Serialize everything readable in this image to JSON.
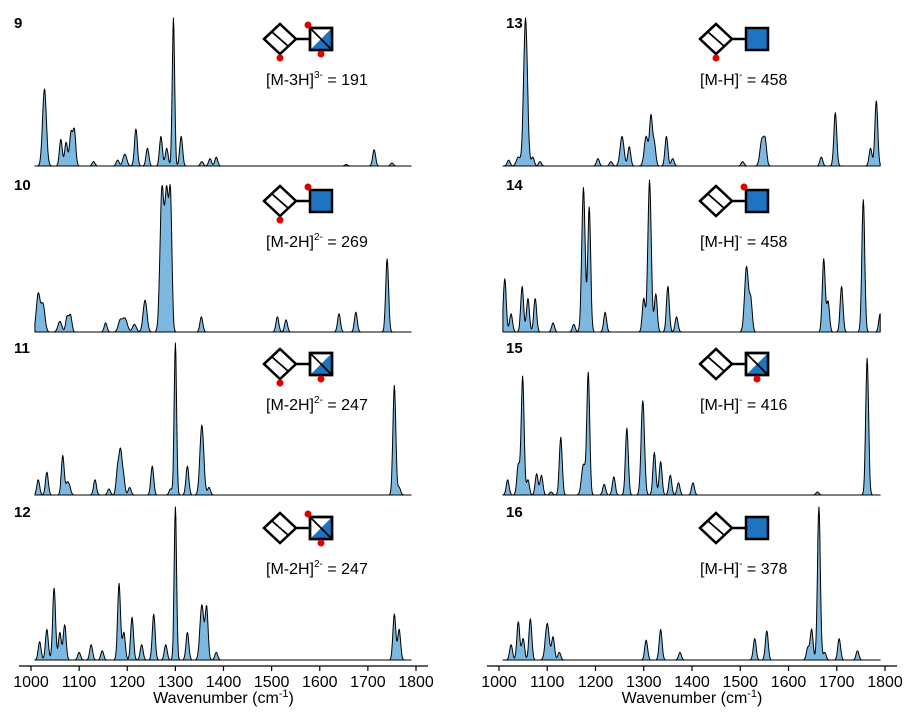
{
  "colors": {
    "fill": "#7db8e0",
    "line": "#000000",
    "hexnac": "#1e74c0",
    "sulfate": "#e00000"
  },
  "axes": {
    "left": {
      "xlabel_base": "Wavenumber (cm",
      "xlabel_sup": "-1",
      "xlabel_end": ")",
      "xlim": [
        1000,
        1800
      ],
      "ticks": [
        "1000",
        "1100",
        "1200",
        "1300",
        "1400",
        "1500",
        "1600",
        "1700",
        "1800"
      ]
    },
    "right": {
      "xlabel_base": "Wavenumber (cm",
      "xlabel_sup": "-1",
      "xlabel_end": ")",
      "xlim": [
        1000,
        1800
      ],
      "ticks": [
        "1000",
        "1100",
        "1200",
        "1300",
        "1400",
        "1500",
        "1600",
        "1700",
        "1800"
      ]
    }
  },
  "chart_data": [
    {
      "type": "area",
      "panel": "9",
      "column": "left",
      "ion_base": "[M-3H]",
      "ion_charge": "3-",
      "ion_mz": " = 191",
      "glycan": {
        "hexnac": "half",
        "sulfates": [
          "gal-bottom",
          "hexnac-top-left",
          "hexnac-bottom-right"
        ]
      },
      "xlim": [
        1000,
        1800
      ],
      "peaks": [
        [
          1028,
          0.52,
          4
        ],
        [
          1062,
          0.18,
          3
        ],
        [
          1073,
          0.16,
          3
        ],
        [
          1083,
          0.22,
          3
        ],
        [
          1090,
          0.24,
          3
        ],
        [
          1130,
          0.03,
          3
        ],
        [
          1180,
          0.04,
          3
        ],
        [
          1195,
          0.08,
          4
        ],
        [
          1218,
          0.25,
          3
        ],
        [
          1242,
          0.12,
          3
        ],
        [
          1270,
          0.2,
          3
        ],
        [
          1282,
          0.12,
          3
        ],
        [
          1296,
          1.0,
          2.5
        ],
        [
          1312,
          0.2,
          3
        ],
        [
          1355,
          0.03,
          3
        ],
        [
          1372,
          0.05,
          3
        ],
        [
          1385,
          0.06,
          3
        ],
        [
          1655,
          0.01,
          3
        ],
        [
          1713,
          0.11,
          3
        ],
        [
          1750,
          0.02,
          3
        ]
      ]
    },
    {
      "type": "area",
      "panel": "10",
      "column": "left",
      "ion_base": "[M-2H]",
      "ion_charge": "2-",
      "ion_mz": " = 269",
      "glycan": {
        "hexnac": "full",
        "sulfates": [
          "gal-bottom",
          "link-top"
        ]
      },
      "xlim": [
        1000,
        1800
      ],
      "peaks": [
        [
          1015,
          0.25,
          4
        ],
        [
          1025,
          0.18,
          4
        ],
        [
          1060,
          0.07,
          4
        ],
        [
          1075,
          0.1,
          3
        ],
        [
          1082,
          0.11,
          3
        ],
        [
          1155,
          0.06,
          3
        ],
        [
          1185,
          0.07,
          4
        ],
        [
          1195,
          0.09,
          5
        ],
        [
          1215,
          0.05,
          4
        ],
        [
          1237,
          0.21,
          4
        ],
        [
          1272,
          0.92,
          4
        ],
        [
          1282,
          0.9,
          4
        ],
        [
          1290,
          0.82,
          3
        ],
        [
          1354,
          0.1,
          3
        ],
        [
          1512,
          0.1,
          3
        ],
        [
          1530,
          0.08,
          3
        ],
        [
          1640,
          0.12,
          3
        ],
        [
          1675,
          0.13,
          3
        ],
        [
          1740,
          0.48,
          3
        ]
      ]
    },
    {
      "type": "area",
      "panel": "11",
      "column": "left",
      "ion_base": "[M-2H]",
      "ion_charge": "2-",
      "ion_mz": " = 247",
      "glycan": {
        "hexnac": "half",
        "sulfates": [
          "gal-bottom",
          "hexnac-bottom-right"
        ]
      },
      "xlim": [
        1000,
        1800
      ],
      "peaks": [
        [
          1015,
          0.1,
          3
        ],
        [
          1033,
          0.15,
          3
        ],
        [
          1066,
          0.26,
          3
        ],
        [
          1075,
          0.07,
          3
        ],
        [
          1080,
          0.05,
          3
        ],
        [
          1133,
          0.1,
          3
        ],
        [
          1162,
          0.04,
          3
        ],
        [
          1180,
          0.17,
          3
        ],
        [
          1186,
          0.27,
          3
        ],
        [
          1192,
          0.12,
          3
        ],
        [
          1205,
          0.05,
          3
        ],
        [
          1252,
          0.19,
          3
        ],
        [
          1290,
          0.04,
          3
        ],
        [
          1300,
          1.0,
          2.5
        ],
        [
          1325,
          0.19,
          3
        ],
        [
          1355,
          0.46,
          4
        ],
        [
          1370,
          0.05,
          3
        ],
        [
          1755,
          0.72,
          3
        ],
        [
          1765,
          0.05,
          3
        ]
      ]
    },
    {
      "type": "area",
      "panel": "12",
      "column": "left",
      "ion_base": "[M-2H]",
      "ion_charge": "2-",
      "ion_mz": " = 247",
      "glycan": {
        "hexnac": "half",
        "sulfates": [
          "link-top",
          "hexnac-bottom-right"
        ]
      },
      "xlim": [
        1000,
        1800
      ],
      "peaks": [
        [
          1018,
          0.12,
          3
        ],
        [
          1033,
          0.2,
          3
        ],
        [
          1048,
          0.47,
          3
        ],
        [
          1060,
          0.18,
          3
        ],
        [
          1070,
          0.23,
          3
        ],
        [
          1100,
          0.05,
          3
        ],
        [
          1125,
          0.1,
          3
        ],
        [
          1148,
          0.06,
          3
        ],
        [
          1183,
          0.5,
          3
        ],
        [
          1193,
          0.18,
          3
        ],
        [
          1210,
          0.28,
          3
        ],
        [
          1230,
          0.1,
          3
        ],
        [
          1255,
          0.3,
          3
        ],
        [
          1280,
          0.1,
          3
        ],
        [
          1300,
          1.0,
          2.5
        ],
        [
          1325,
          0.18,
          3
        ],
        [
          1355,
          0.36,
          4
        ],
        [
          1365,
          0.34,
          3
        ],
        [
          1385,
          0.05,
          3
        ],
        [
          1755,
          0.3,
          3
        ],
        [
          1765,
          0.2,
          3
        ]
      ]
    },
    {
      "type": "area",
      "panel": "13",
      "column": "right",
      "ion_base": "[M-H]",
      "ion_charge": "-",
      "ion_mz": " = 458",
      "glycan": {
        "hexnac": "full",
        "sulfates": [
          "gal-bottom"
        ]
      },
      "xlim": [
        1000,
        1800
      ],
      "peaks": [
        [
          1020,
          0.04,
          3
        ],
        [
          1040,
          0.06,
          4
        ],
        [
          1055,
          1.0,
          4
        ],
        [
          1070,
          0.06,
          3
        ],
        [
          1085,
          0.03,
          3
        ],
        [
          1205,
          0.05,
          3
        ],
        [
          1232,
          0.03,
          3
        ],
        [
          1255,
          0.2,
          4
        ],
        [
          1270,
          0.13,
          3
        ],
        [
          1305,
          0.2,
          4
        ],
        [
          1315,
          0.33,
          3
        ],
        [
          1322,
          0.15,
          3
        ],
        [
          1347,
          0.2,
          3
        ],
        [
          1360,
          0.05,
          3
        ],
        [
          1505,
          0.03,
          3
        ],
        [
          1545,
          0.18,
          4
        ],
        [
          1552,
          0.15,
          3
        ],
        [
          1668,
          0.06,
          3
        ],
        [
          1697,
          0.36,
          3
        ],
        [
          1770,
          0.12,
          3
        ],
        [
          1782,
          0.44,
          3
        ]
      ]
    },
    {
      "type": "area",
      "panel": "14",
      "column": "right",
      "ion_base": "[M-H]",
      "ion_charge": "-",
      "ion_mz": " = 458",
      "glycan": {
        "hexnac": "full",
        "sulfates": [
          "link-top"
        ]
      },
      "xlim": [
        1000,
        1800
      ],
      "peaks": [
        [
          1012,
          0.35,
          3
        ],
        [
          1025,
          0.12,
          3
        ],
        [
          1048,
          0.3,
          3
        ],
        [
          1060,
          0.22,
          3
        ],
        [
          1075,
          0.22,
          3
        ],
        [
          1112,
          0.06,
          3
        ],
        [
          1155,
          0.05,
          3
        ],
        [
          1175,
          0.95,
          3.5
        ],
        [
          1187,
          0.82,
          3
        ],
        [
          1220,
          0.13,
          3
        ],
        [
          1300,
          0.22,
          3
        ],
        [
          1312,
          1.0,
          3.5
        ],
        [
          1325,
          0.25,
          3
        ],
        [
          1350,
          0.3,
          3
        ],
        [
          1368,
          0.1,
          3
        ],
        [
          1513,
          0.43,
          4
        ],
        [
          1522,
          0.2,
          3
        ],
        [
          1673,
          0.48,
          3
        ],
        [
          1682,
          0.2,
          3
        ],
        [
          1710,
          0.3,
          3
        ],
        [
          1755,
          0.87,
          3
        ],
        [
          1790,
          0.12,
          3
        ]
      ]
    },
    {
      "type": "area",
      "panel": "15",
      "column": "right",
      "ion_base": "[M-H]",
      "ion_charge": "-",
      "ion_mz": " = 416",
      "glycan": {
        "hexnac": "half",
        "sulfates": [
          "hexnac-bottom-right"
        ]
      },
      "xlim": [
        1000,
        1800
      ],
      "peaks": [
        [
          1018,
          0.1,
          3
        ],
        [
          1040,
          0.2,
          3
        ],
        [
          1049,
          0.78,
          3
        ],
        [
          1060,
          0.1,
          3
        ],
        [
          1078,
          0.14,
          3
        ],
        [
          1088,
          0.13,
          3
        ],
        [
          1108,
          0.02,
          3
        ],
        [
          1128,
          0.38,
          3
        ],
        [
          1175,
          0.2,
          4
        ],
        [
          1185,
          0.8,
          3
        ],
        [
          1218,
          0.07,
          3
        ],
        [
          1238,
          0.12,
          3
        ],
        [
          1265,
          0.44,
          3
        ],
        [
          1298,
          0.62,
          3.5
        ],
        [
          1322,
          0.28,
          3
        ],
        [
          1335,
          0.22,
          3
        ],
        [
          1355,
          0.13,
          3
        ],
        [
          1372,
          0.08,
          3
        ],
        [
          1402,
          0.08,
          3
        ],
        [
          1660,
          0.02,
          3
        ],
        [
          1763,
          0.9,
          3
        ]
      ]
    },
    {
      "type": "area",
      "panel": "16",
      "column": "right",
      "ion_base": "[M-H]",
      "ion_charge": "-",
      "ion_mz": " = 378",
      "glycan": {
        "hexnac": "full",
        "sulfates": []
      },
      "xlim": [
        1000,
        1800
      ],
      "peaks": [
        [
          1025,
          0.1,
          3
        ],
        [
          1040,
          0.25,
          3
        ],
        [
          1050,
          0.14,
          3
        ],
        [
          1065,
          0.27,
          3
        ],
        [
          1100,
          0.24,
          4
        ],
        [
          1112,
          0.15,
          3
        ],
        [
          1125,
          0.05,
          3
        ],
        [
          1305,
          0.13,
          3
        ],
        [
          1335,
          0.2,
          3
        ],
        [
          1375,
          0.05,
          3
        ],
        [
          1530,
          0.14,
          3
        ],
        [
          1555,
          0.19,
          3
        ],
        [
          1640,
          0.08,
          3
        ],
        [
          1648,
          0.2,
          3
        ],
        [
          1663,
          1.0,
          3
        ],
        [
          1675,
          0.05,
          3
        ],
        [
          1705,
          0.14,
          3
        ],
        [
          1743,
          0.06,
          3
        ]
      ]
    }
  ]
}
